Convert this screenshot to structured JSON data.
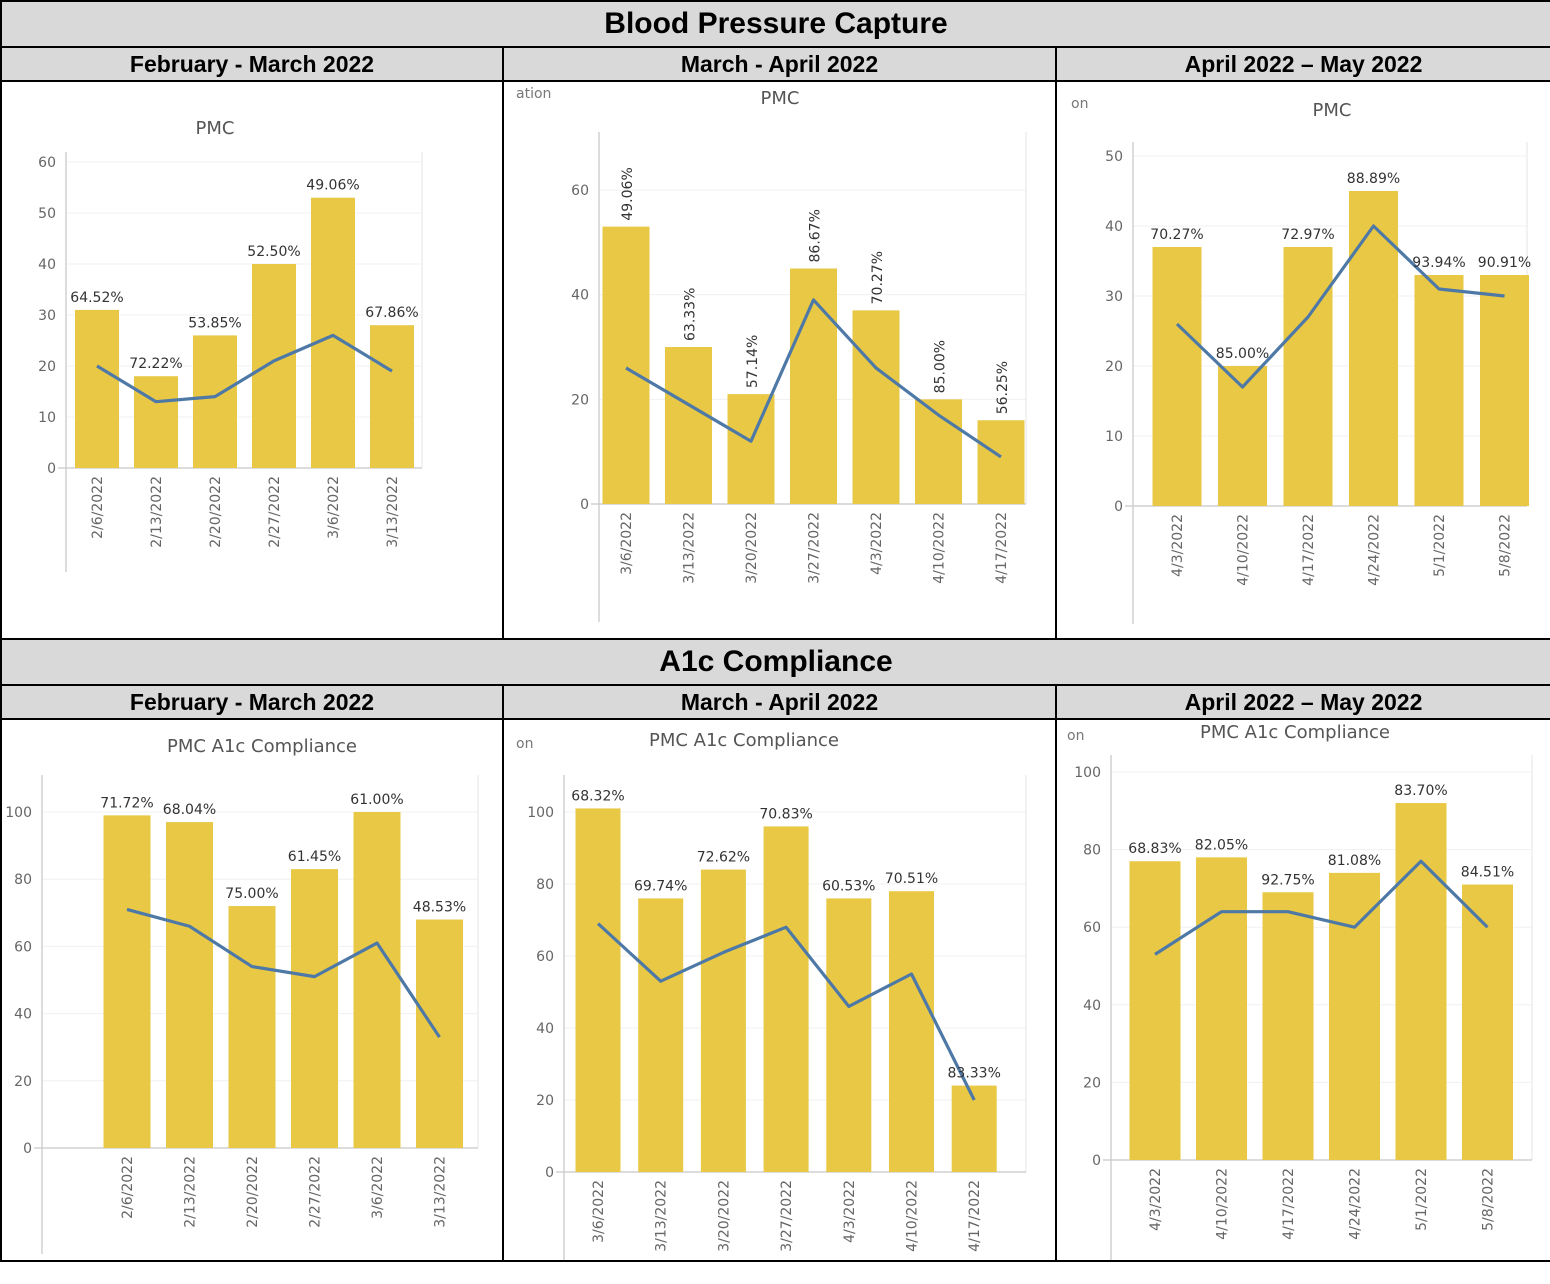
{
  "sections": [
    {
      "title": "Blood Pressure Capture",
      "periods": [
        "February - March 2022",
        "March - April 2022",
        "April 2022 – May 2022"
      ]
    },
    {
      "title": "A1c Compliance",
      "periods": [
        "February - March 2022",
        "March - April 2022",
        "April 2022 – May 2022"
      ]
    }
  ],
  "colors": {
    "bar": "#e9c845",
    "line": "#4e79a7",
    "header_bg": "#d9d9d9"
  },
  "chart_data": [
    {
      "type": "bar",
      "title": "PMC",
      "axis_crumb": "",
      "categories": [
        "2/6/2022",
        "2/13/2022",
        "2/20/2022",
        "2/27/2022",
        "3/6/2022",
        "3/13/2022"
      ],
      "bars": [
        31,
        18,
        26,
        40,
        53,
        28
      ],
      "line": [
        20,
        13,
        14,
        21,
        26,
        19
      ],
      "labels": [
        "64.52%",
        "72.22%",
        "53.85%",
        "52.50%",
        "49.06%",
        "67.86%"
      ],
      "yticks": [
        0,
        10,
        20,
        30,
        40,
        50,
        60
      ],
      "ylim": [
        0,
        60
      ],
      "label_orientation": "horizontal"
    },
    {
      "type": "bar",
      "title": "PMC",
      "axis_crumb": "ation",
      "categories": [
        "3/6/2022",
        "3/13/2022",
        "3/20/2022",
        "3/27/2022",
        "4/3/2022",
        "4/10/2022",
        "4/17/2022"
      ],
      "bars": [
        53,
        30,
        21,
        45,
        37,
        20,
        16
      ],
      "line": [
        26,
        19,
        12,
        39,
        26,
        17,
        9
      ],
      "labels": [
        "49.06%",
        "63.33%",
        "57.14%",
        "86.67%",
        "70.27%",
        "85.00%",
        "56.25%"
      ],
      "yticks": [
        0,
        20,
        40,
        60
      ],
      "ylim": [
        0,
        60
      ],
      "label_orientation": "vertical"
    },
    {
      "type": "bar",
      "title": "PMC",
      "axis_crumb": "on",
      "categories": [
        "4/3/2022",
        "4/10/2022",
        "4/17/2022",
        "4/24/2022",
        "5/1/2022",
        "5/8/2022"
      ],
      "bars": [
        37,
        20,
        37,
        45,
        33,
        33
      ],
      "line": [
        26,
        17,
        27,
        40,
        31,
        30
      ],
      "labels": [
        "70.27%",
        "85.00%",
        "72.97%",
        "88.89%",
        "93.94%",
        "90.91%"
      ],
      "yticks": [
        0,
        10,
        20,
        30,
        40,
        50
      ],
      "ylim": [
        0,
        50
      ],
      "label_orientation": "horizontal"
    },
    {
      "type": "bar",
      "title": "PMC A1c Compliance",
      "axis_crumb": "",
      "categories": [
        "2/6/2022",
        "2/13/2022",
        "2/20/2022",
        "2/27/2022",
        "3/6/2022",
        "3/13/2022"
      ],
      "bars": [
        99,
        97,
        72,
        83,
        100,
        68
      ],
      "line": [
        71,
        66,
        54,
        51,
        61,
        33
      ],
      "labels": [
        "71.72%",
        "68.04%",
        "75.00%",
        "61.45%",
        "61.00%",
        "48.53%"
      ],
      "yticks": [
        0,
        20,
        40,
        60,
        80,
        100
      ],
      "ylim": [
        0,
        100
      ],
      "label_orientation": "horizontal"
    },
    {
      "type": "bar",
      "title": "PMC A1c Compliance",
      "axis_crumb": "on",
      "categories": [
        "3/6/2022",
        "3/13/2022",
        "3/20/2022",
        "3/27/2022",
        "4/3/2022",
        "4/10/2022",
        "4/17/2022"
      ],
      "bars": [
        101,
        76,
        84,
        96,
        76,
        78,
        24
      ],
      "line": [
        69,
        53,
        61,
        68,
        46,
        55,
        20
      ],
      "labels": [
        "68.32%",
        "69.74%",
        "72.62%",
        "70.83%",
        "60.53%",
        "70.51%",
        "83.33%"
      ],
      "yticks": [
        0,
        20,
        40,
        60,
        80,
        100
      ],
      "ylim": [
        0,
        100
      ],
      "label_orientation": "horizontal"
    },
    {
      "type": "bar",
      "title": "PMC A1c Compliance",
      "axis_crumb": "on",
      "categories": [
        "4/3/2022",
        "4/10/2022",
        "4/17/2022",
        "4/24/2022",
        "5/1/2022",
        "5/8/2022"
      ],
      "bars": [
        77,
        78,
        69,
        74,
        92,
        71
      ],
      "line": [
        53,
        64,
        64,
        60,
        77,
        60
      ],
      "labels": [
        "68.83%",
        "82.05%",
        "92.75%",
        "81.08%",
        "83.70%",
        "84.51%"
      ],
      "yticks": [
        0,
        20,
        40,
        60,
        80,
        100
      ],
      "ylim": [
        0,
        100
      ],
      "label_orientation": "horizontal"
    }
  ]
}
